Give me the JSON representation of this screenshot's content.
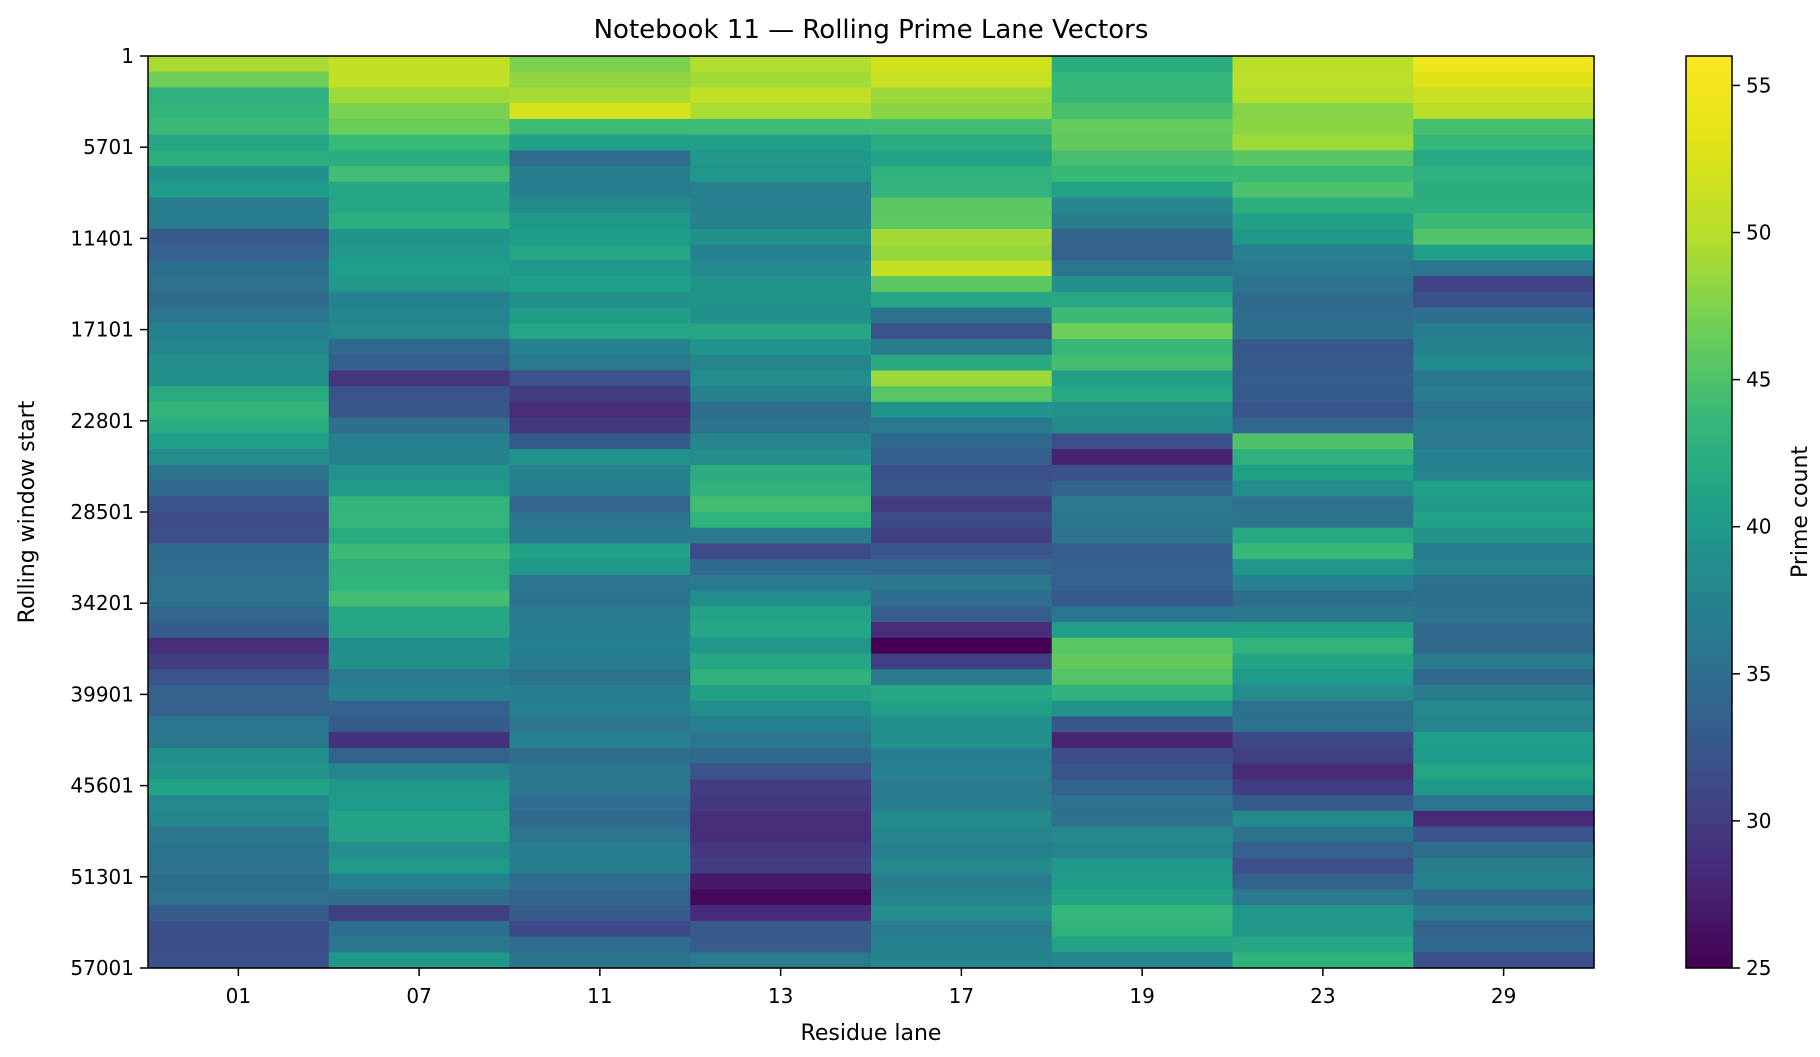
{
  "chart_data": {
    "type": "heatmap",
    "title": "Notebook 11 — Rolling Prime Lane Vectors",
    "xlabel": "Residue lane",
    "ylabel": "Rolling window start",
    "colorbar_label": "Prime count",
    "colormap": "viridis",
    "x_categories": [
      "01",
      "07",
      "11",
      "13",
      "17",
      "19",
      "23",
      "29"
    ],
    "y_ticks": [
      "1",
      "5701",
      "11401",
      "17101",
      "22801",
      "28501",
      "34201",
      "39901",
      "45601",
      "51301",
      "57001"
    ],
    "y_range": [
      1,
      57001
    ],
    "colorbar_range": [
      25,
      56
    ],
    "colorbar_ticks": [
      25,
      30,
      35,
      40,
      45,
      50,
      55
    ],
    "rows_approx": 58,
    "row_window_step": 1000,
    "lane_profiles": [
      {
        "lane": "01",
        "points": [
          [
            1,
            48
          ],
          [
            2000,
            44
          ],
          [
            5701,
            42
          ],
          [
            11401,
            34
          ],
          [
            17101,
            37
          ],
          [
            22801,
            43
          ],
          [
            28501,
            31
          ],
          [
            34201,
            36
          ],
          [
            37000,
            30
          ],
          [
            39901,
            33
          ],
          [
            45601,
            41
          ],
          [
            51301,
            35
          ],
          [
            57001,
            32
          ]
        ]
      },
      {
        "lane": "07",
        "points": [
          [
            1,
            52
          ],
          [
            5701,
            44
          ],
          [
            11401,
            40
          ],
          [
            17101,
            37
          ],
          [
            20000,
            30
          ],
          [
            22801,
            34
          ],
          [
            28501,
            43
          ],
          [
            34201,
            44
          ],
          [
            39901,
            36
          ],
          [
            43000,
            30
          ],
          [
            45601,
            41
          ],
          [
            51301,
            39
          ],
          [
            54000,
            31
          ],
          [
            57001,
            40
          ]
        ]
      },
      {
        "lane": "11",
        "points": [
          [
            1,
            47
          ],
          [
            3000,
            51
          ],
          [
            5701,
            36
          ],
          [
            11401,
            40
          ],
          [
            17101,
            40
          ],
          [
            22801,
            27
          ],
          [
            25000,
            40
          ],
          [
            28501,
            33
          ],
          [
            31000,
            40
          ],
          [
            34201,
            35
          ],
          [
            39901,
            37
          ],
          [
            45601,
            35
          ],
          [
            51301,
            37
          ],
          [
            55000,
            31
          ],
          [
            57001,
            36
          ]
        ]
      },
      {
        "lane": "13",
        "points": [
          [
            1,
            50
          ],
          [
            3000,
            49
          ],
          [
            5701,
            39
          ],
          [
            11401,
            38
          ],
          [
            17101,
            40
          ],
          [
            22801,
            36
          ],
          [
            28501,
            45
          ],
          [
            31000,
            31
          ],
          [
            34201,
            40
          ],
          [
            39901,
            42
          ],
          [
            45601,
            31
          ],
          [
            48000,
            28
          ],
          [
            51301,
            29
          ],
          [
            53000,
            27
          ],
          [
            57001,
            37
          ]
        ]
      },
      {
        "lane": "17",
        "points": [
          [
            1,
            52
          ],
          [
            5701,
            42
          ],
          [
            11401,
            48
          ],
          [
            13000,
            51
          ],
          [
            17101,
            30
          ],
          [
            20000,
            50
          ],
          [
            22801,
            37
          ],
          [
            28501,
            30
          ],
          [
            34201,
            36
          ],
          [
            37000,
            26
          ],
          [
            39901,
            40
          ],
          [
            45601,
            37
          ],
          [
            51301,
            38
          ],
          [
            57001,
            37
          ]
        ]
      },
      {
        "lane": "19",
        "points": [
          [
            1,
            42
          ],
          [
            5701,
            46
          ],
          [
            11401,
            33
          ],
          [
            17101,
            46
          ],
          [
            22801,
            38
          ],
          [
            25000,
            29
          ],
          [
            28501,
            37
          ],
          [
            34201,
            32
          ],
          [
            37000,
            45
          ],
          [
            39901,
            44
          ],
          [
            43000,
            29
          ],
          [
            45601,
            33
          ],
          [
            51301,
            40
          ],
          [
            54000,
            44
          ],
          [
            57001,
            38
          ]
        ]
      },
      {
        "lane": "23",
        "points": [
          [
            1,
            51
          ],
          [
            5701,
            47
          ],
          [
            11401,
            39
          ],
          [
            17101,
            34
          ],
          [
            22801,
            33
          ],
          [
            24000,
            46
          ],
          [
            28501,
            35
          ],
          [
            31000,
            44
          ],
          [
            34201,
            33
          ],
          [
            37000,
            43
          ],
          [
            39901,
            38
          ],
          [
            45601,
            27
          ],
          [
            48000,
            38
          ],
          [
            51301,
            32
          ],
          [
            54000,
            40
          ],
          [
            57001,
            43
          ]
        ]
      },
      {
        "lane": "29",
        "points": [
          [
            1,
            55
          ],
          [
            3000,
            49
          ],
          [
            5701,
            41
          ],
          [
            11401,
            44
          ],
          [
            14000,
            31
          ],
          [
            17101,
            38
          ],
          [
            22801,
            36
          ],
          [
            28501,
            41
          ],
          [
            34201,
            34
          ],
          [
            39901,
            36
          ],
          [
            45601,
            42
          ],
          [
            48000,
            29
          ],
          [
            51301,
            37
          ],
          [
            57001,
            33
          ]
        ]
      }
    ]
  }
}
